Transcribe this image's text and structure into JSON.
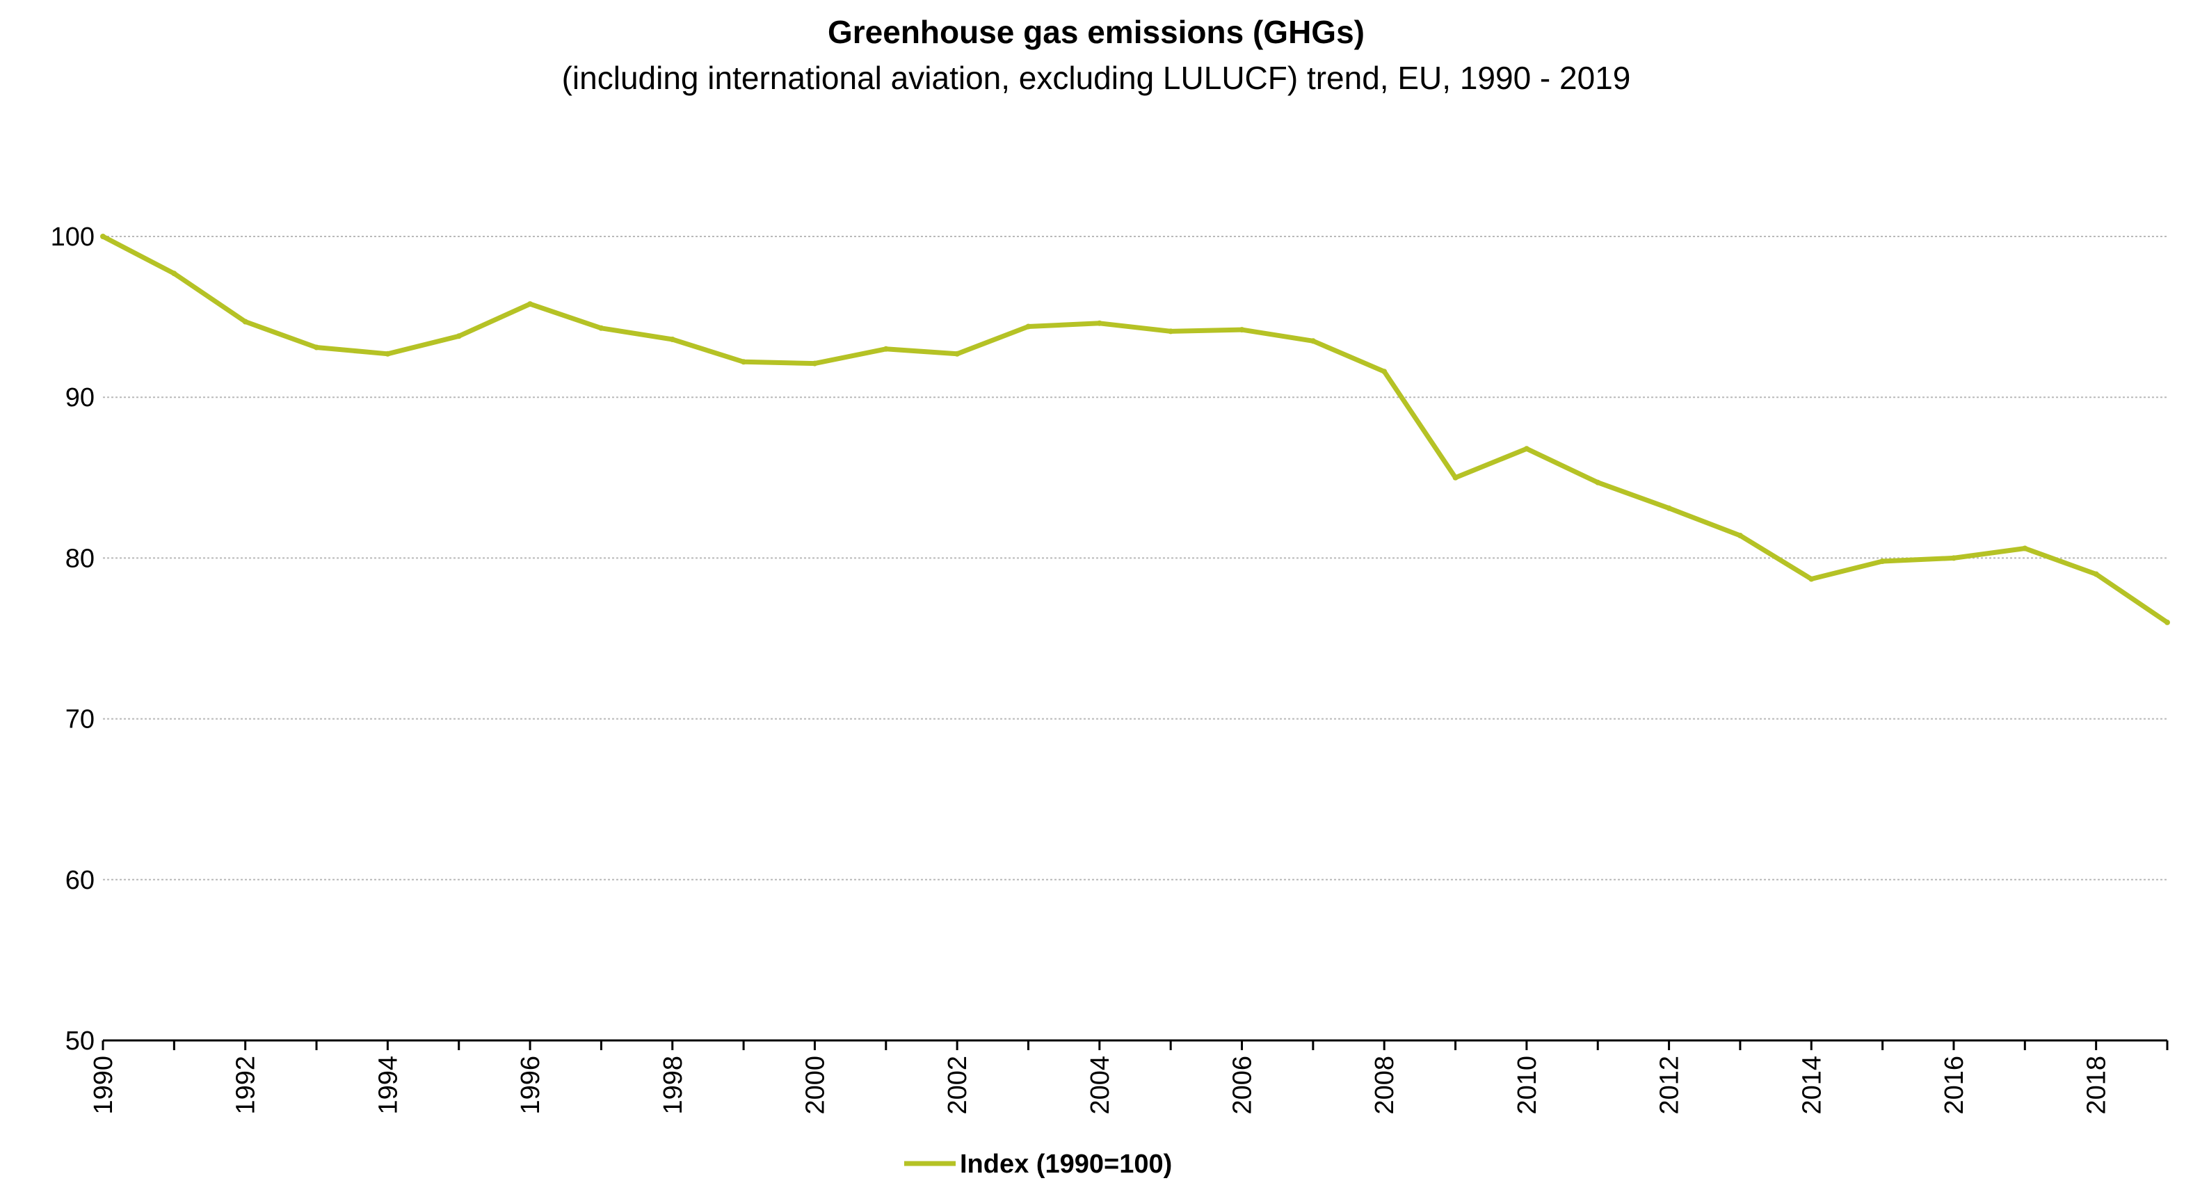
{
  "chart_data": {
    "type": "line",
    "title": "Greenhouse gas emissions (GHGs)",
    "subtitle": "(including international aviation, excluding LULUCF) trend, EU, 1990 - 2019",
    "xlabel": "",
    "ylabel": "",
    "x": [
      1990,
      1991,
      1992,
      1993,
      1994,
      1995,
      1996,
      1997,
      1998,
      1999,
      2000,
      2001,
      2002,
      2003,
      2004,
      2005,
      2006,
      2007,
      2008,
      2009,
      2010,
      2011,
      2012,
      2013,
      2014,
      2015,
      2016,
      2017,
      2018,
      2019
    ],
    "x_tick_labels": [
      "1990",
      "1992",
      "1994",
      "1996",
      "1998",
      "2000",
      "2002",
      "2004",
      "2006",
      "2008",
      "2010",
      "2012",
      "2014",
      "2016",
      "2018"
    ],
    "ylim": [
      50,
      100
    ],
    "y_ticks": [
      50,
      60,
      70,
      80,
      90,
      100
    ],
    "grid": true,
    "legend_position": "bottom-center",
    "series": [
      {
        "name": "Index (1990=100)",
        "color": "#b5c225",
        "values": [
          100.0,
          97.7,
          94.7,
          93.1,
          92.7,
          93.8,
          95.8,
          94.3,
          93.6,
          92.2,
          92.1,
          93.0,
          92.7,
          94.4,
          94.6,
          94.1,
          94.2,
          93.5,
          91.6,
          85.0,
          86.8,
          84.7,
          83.1,
          81.4,
          78.7,
          79.8,
          80.0,
          80.6,
          79.0,
          76.0
        ]
      }
    ]
  }
}
